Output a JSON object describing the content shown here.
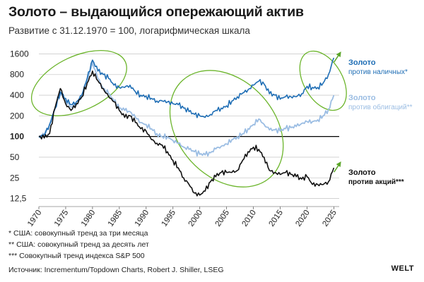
{
  "title": "Золото – выдающийся опережающий актив",
  "subtitle": "Развитие с 31.12.1970 = 100, логарифмическая шкала",
  "notes": [
    "* США: совокупный тренд за три месяца",
    "** США: совокупный тренд за десять лет",
    "*** Совокупный тренд индекса S&P 500"
  ],
  "source": "Источник: Incrementum/Topdown Charts, Robert J. Shiller, LSEG",
  "brand": "WELT",
  "colors": {
    "cash": "#1f6eb5",
    "bonds": "#9bbde3",
    "stocks": "#111111",
    "ellipse": "#6cb52c",
    "arrow": "#5aa528",
    "grid": "#cccccc",
    "baseline": "#000000"
  },
  "chart_data": {
    "type": "line",
    "log_scale": true,
    "ylim": [
      10,
      2000
    ],
    "yticks": [
      12.5,
      25,
      50,
      100,
      200,
      400,
      800,
      1600
    ],
    "ytick_labels": [
      "12,5",
      "25",
      "50",
      "100",
      "200",
      "400",
      "800",
      "1600"
    ],
    "xlim": [
      1970,
      2026
    ],
    "xticks": [
      1970,
      1975,
      1980,
      1985,
      1990,
      1995,
      2000,
      2005,
      2010,
      2015,
      2020,
      2025
    ],
    "xtick_labels": [
      "1970",
      "1975",
      "1980",
      "1985",
      "1990",
      "1995",
      "2000",
      "2005",
      "2010",
      "2015",
      "2020",
      "2025"
    ],
    "grid": "horizontal",
    "baseline": 100,
    "series": [
      {
        "key": "cash",
        "label_main": "Золото",
        "label_sub": "против наличных*",
        "x": [
          1970,
          1971,
          1972,
          1973,
          1974,
          1975,
          1976,
          1977,
          1978,
          1979,
          1980,
          1981,
          1982,
          1983,
          1984,
          1985,
          1986,
          1987,
          1988,
          1989,
          1990,
          1991,
          1992,
          1993,
          1994,
          1995,
          1996,
          1997,
          1998,
          1999,
          2000,
          2001,
          2002,
          2003,
          2004,
          2005,
          2006,
          2007,
          2008,
          2009,
          2010,
          2011,
          2012,
          2013,
          2014,
          2015,
          2016,
          2017,
          2018,
          2019,
          2020,
          2021,
          2022,
          2023,
          2024,
          2025
        ],
        "y": [
          100,
          105,
          150,
          260,
          450,
          360,
          290,
          320,
          400,
          700,
          1300,
          900,
          800,
          700,
          560,
          520,
          520,
          560,
          450,
          400,
          390,
          360,
          330,
          330,
          320,
          300,
          290,
          260,
          230,
          210,
          200,
          190,
          210,
          240,
          260,
          280,
          330,
          380,
          430,
          480,
          560,
          640,
          580,
          420,
          400,
          350,
          380,
          380,
          380,
          420,
          540,
          520,
          520,
          600,
          800,
          1400
        ]
      },
      {
        "key": "bonds",
        "label_main": "Золото",
        "label_sub": "против облигаций**",
        "x": [
          1970,
          1971,
          1972,
          1973,
          1974,
          1975,
          1976,
          1977,
          1978,
          1979,
          1980,
          1981,
          1982,
          1983,
          1984,
          1985,
          1986,
          1987,
          1988,
          1989,
          1990,
          1991,
          1992,
          1993,
          1994,
          1995,
          1996,
          1997,
          1998,
          1999,
          2000,
          2001,
          2002,
          2003,
          2004,
          2005,
          2006,
          2007,
          2008,
          2009,
          2010,
          2011,
          2012,
          2013,
          2014,
          2015,
          2016,
          2017,
          2018,
          2019,
          2020,
          2021,
          2022,
          2023,
          2024,
          2025
        ],
        "y": [
          100,
          105,
          150,
          250,
          420,
          340,
          270,
          300,
          370,
          650,
          1200,
          700,
          500,
          420,
          330,
          260,
          240,
          230,
          190,
          160,
          150,
          130,
          110,
          100,
          100,
          88,
          80,
          70,
          65,
          60,
          55,
          54,
          58,
          66,
          72,
          78,
          90,
          100,
          110,
          130,
          150,
          180,
          150,
          125,
          125,
          120,
          130,
          135,
          140,
          155,
          165,
          165,
          175,
          200,
          250,
          400
        ]
      },
      {
        "key": "stocks",
        "label_main": "Золото",
        "label_sub": "против акций***",
        "x": [
          1970,
          1971,
          1972,
          1973,
          1974,
          1975,
          1976,
          1977,
          1978,
          1979,
          1980,
          1981,
          1982,
          1983,
          1984,
          1985,
          1986,
          1987,
          1988,
          1989,
          1990,
          1991,
          1992,
          1993,
          1994,
          1995,
          1996,
          1997,
          1998,
          1999,
          2000,
          2001,
          2002,
          2003,
          2004,
          2005,
          2006,
          2007,
          2008,
          2009,
          2010,
          2011,
          2012,
          2013,
          2014,
          2015,
          2016,
          2017,
          2018,
          2019,
          2020,
          2021,
          2022,
          2023,
          2024,
          2025
        ],
        "y": [
          100,
          95,
          110,
          260,
          500,
          300,
          240,
          300,
          380,
          600,
          900,
          650,
          500,
          380,
          320,
          240,
          190,
          200,
          160,
          130,
          120,
          90,
          80,
          75,
          60,
          45,
          35,
          25,
          20,
          15,
          14,
          16,
          22,
          26,
          30,
          30,
          30,
          32,
          45,
          60,
          70,
          65,
          50,
          32,
          30,
          28,
          30,
          28,
          26,
          24,
          26,
          20,
          20,
          20,
          22,
          35
        ]
      }
    ]
  }
}
